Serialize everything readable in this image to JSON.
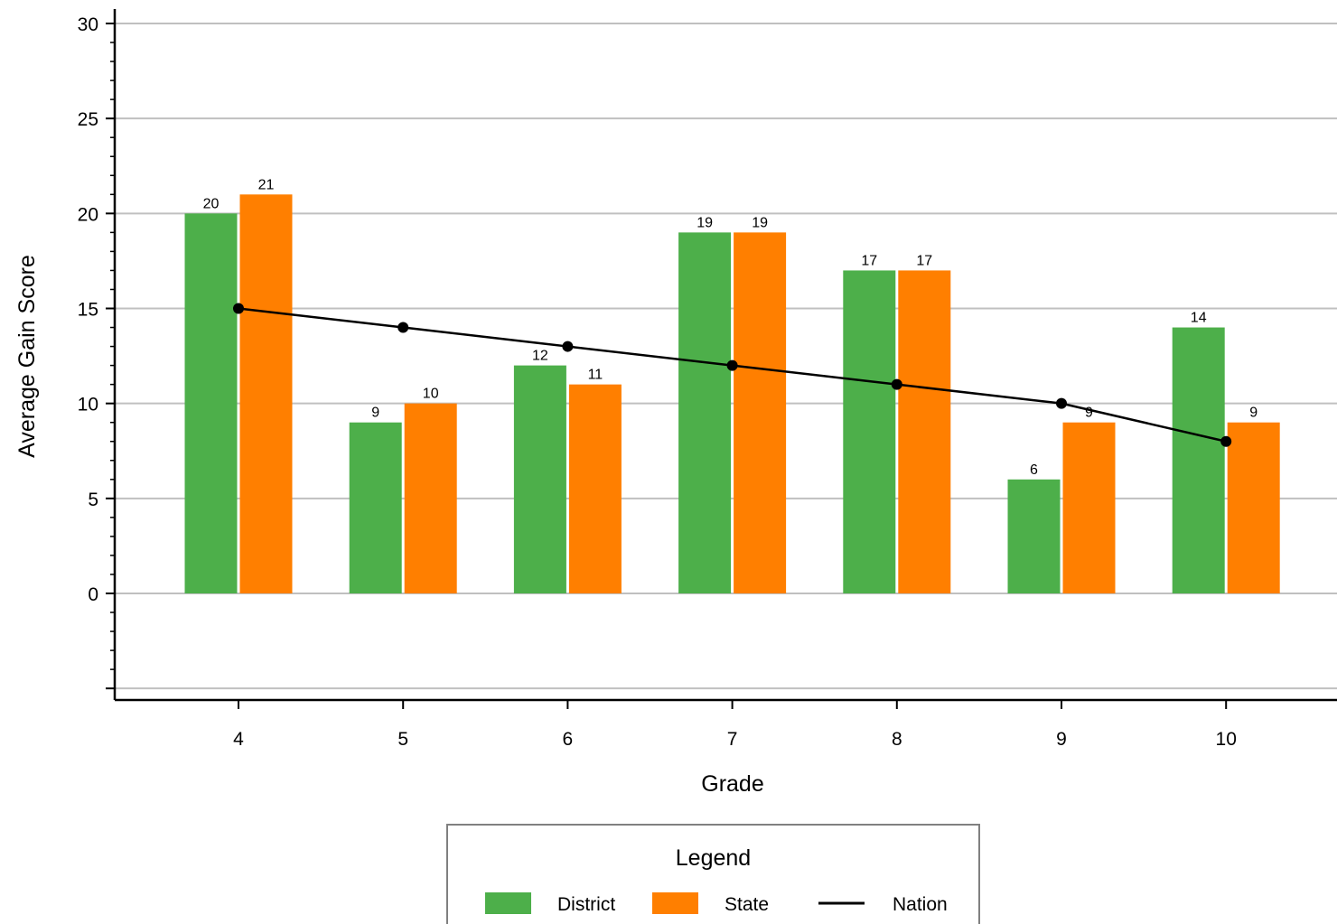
{
  "chart_data": {
    "type": "bar",
    "categories": [
      "4",
      "5",
      "6",
      "7",
      "8",
      "9",
      "10"
    ],
    "series": [
      {
        "name": "District",
        "kind": "bar",
        "color": "#4daf4a",
        "values": [
          20,
          9,
          12,
          19,
          17,
          6,
          14
        ]
      },
      {
        "name": "State",
        "kind": "bar",
        "color": "#ff7f00",
        "values": [
          21,
          10,
          11,
          19,
          17,
          9,
          9
        ]
      },
      {
        "name": "Nation",
        "kind": "line",
        "color": "#000000",
        "values": [
          15,
          14,
          13,
          12,
          11,
          10,
          8
        ]
      }
    ],
    "title": "",
    "xlabel": "Grade",
    "ylabel": "Average Gain Score",
    "ylim": [
      -5,
      30
    ],
    "yticks": [
      0,
      5,
      10,
      15,
      20,
      25,
      30
    ],
    "grid": "horizontal",
    "legend": {
      "title": "Legend",
      "placement": "bottom-center"
    }
  }
}
